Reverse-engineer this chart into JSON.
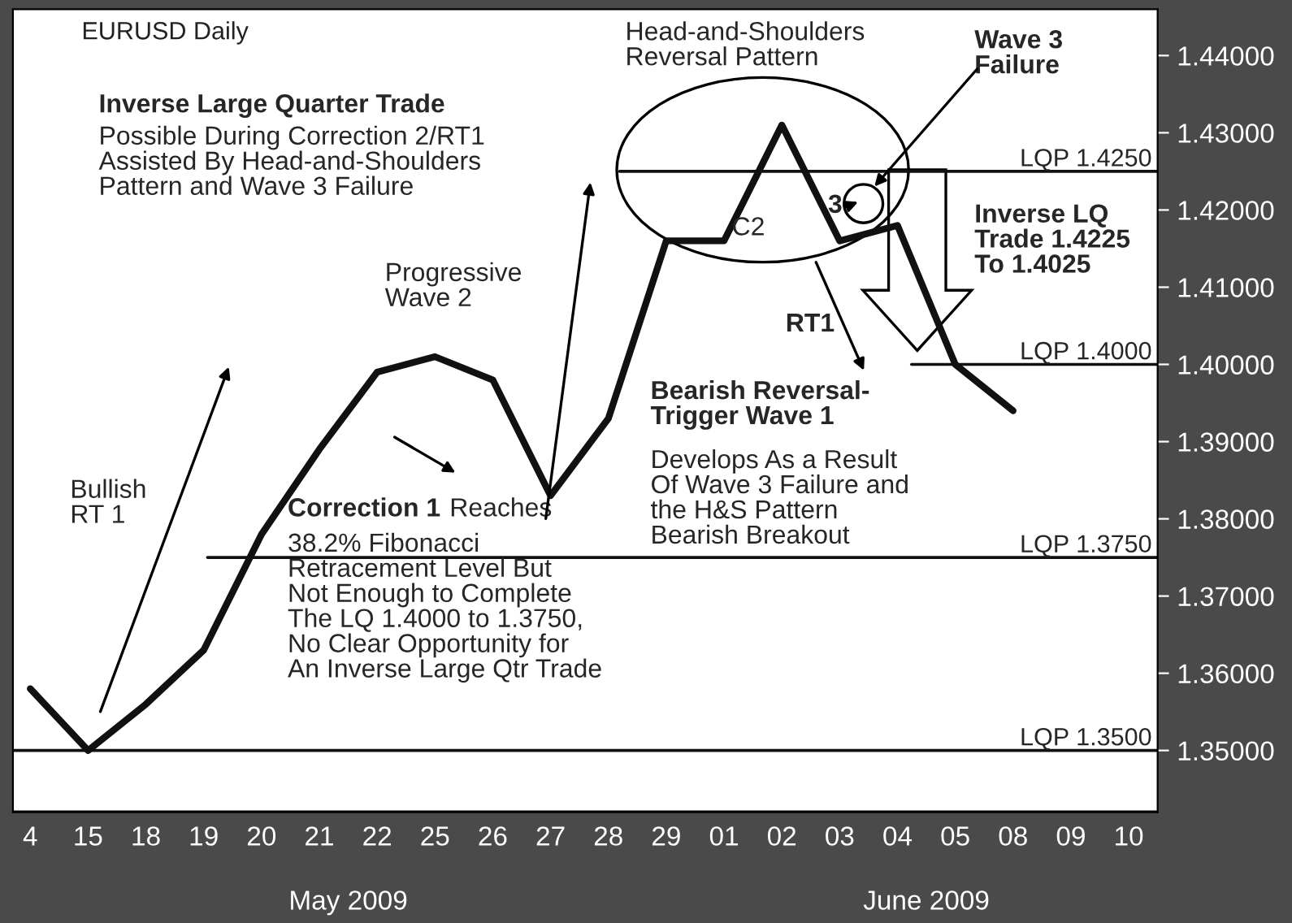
{
  "chart_data": {
    "type": "line",
    "title": "EURUSD Daily",
    "categories": [
      "4",
      "15",
      "18",
      "19",
      "20",
      "21",
      "22",
      "25",
      "26",
      "27",
      "28",
      "29",
      "01",
      "02",
      "03",
      "04",
      "05",
      "08",
      "09",
      "10"
    ],
    "series": [
      {
        "color": "#111111",
        "values": [
          1.358,
          1.35,
          1.356,
          1.363,
          1.378,
          1.389,
          1.399,
          1.401,
          1.398,
          1.383,
          1.393,
          1.416,
          1.416,
          1.431,
          1.416,
          1.418,
          1.4,
          1.394,
          null,
          null
        ]
      }
    ],
    "ylim": [
      1.342,
      1.446
    ],
    "yticks": [
      {
        "value": 1.35,
        "label": "1.35000"
      },
      {
        "value": 1.36,
        "label": "1.36000"
      },
      {
        "value": 1.37,
        "label": "1.37000"
      },
      {
        "value": 1.38,
        "label": "1.38000"
      },
      {
        "value": 1.39,
        "label": "1.39000"
      },
      {
        "value": 1.4,
        "label": "1.40000"
      },
      {
        "value": 1.41,
        "label": "1.41000"
      },
      {
        "value": 1.42,
        "label": "1.42000"
      },
      {
        "value": 1.43,
        "label": "1.43000"
      },
      {
        "value": 1.44,
        "label": "1.44000"
      }
    ],
    "ref_lines": [
      {
        "axis": "y",
        "value": 1.425,
        "label": "LQP 1.4250",
        "color": "#111111"
      },
      {
        "axis": "y",
        "value": 1.4,
        "label": "LQP 1.4000",
        "color": "#111111"
      },
      {
        "axis": "y",
        "value": 1.375,
        "label": "LQP 1.3750",
        "color": "#111111"
      },
      {
        "axis": "y",
        "value": 1.35,
        "label": "LQP 1.3500",
        "color": "#111111"
      }
    ],
    "annotations": [
      "Inverse Large Quarter Trade",
      "Possible During Correction 2/RT1\nAssisted By Head-and-Shoulders\nPattern and Wave 3 Failure",
      "Progressive\nWave 2",
      "Head-and-Shoulders\nReversal Pattern",
      "Wave 3\nFailure",
      "3",
      "C2",
      "RT1",
      "Inverse LQ\nTrade 1.4225\nTo 1.4025",
      "Bearish Reversal-\nTrigger Wave 1",
      "Develops As a Result\nOf Wave 3 Failure and\nthe H&S Pattern\nBearish Breakout",
      "Bullish\nRT 1",
      "Correction 1",
      "Reaches",
      "38.2% Fibonacci\nRetracement Level But\nNot Enough to Complete\nThe LQ 1.4000 to 1.3750,\nNo Clear Opportunity for\nAn Inverse Large Qtr Trade",
      "May 2009",
      "June 2009"
    ],
    "grid": false,
    "marker": "none",
    "line_style": "solid"
  }
}
